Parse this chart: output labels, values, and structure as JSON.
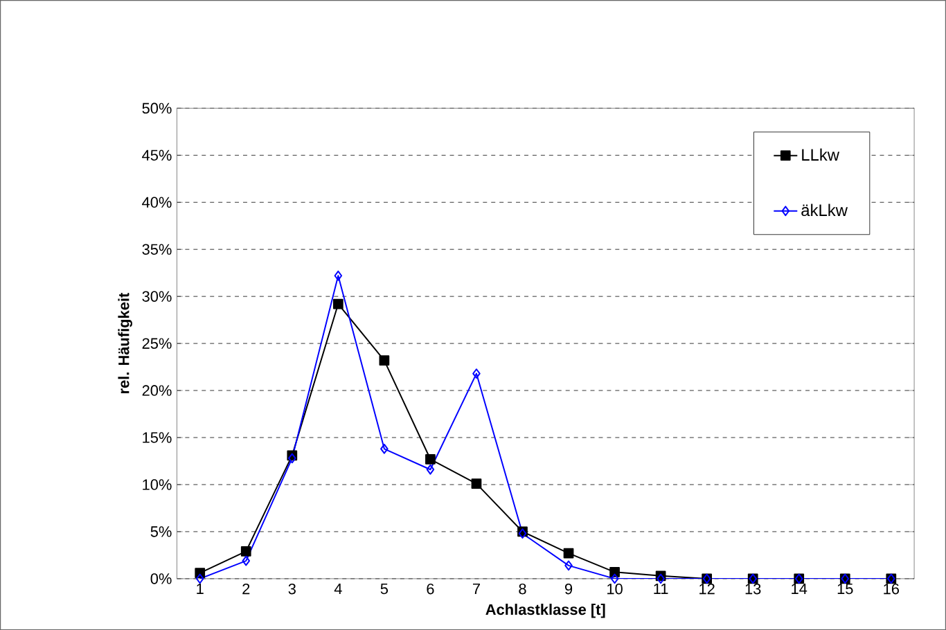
{
  "chart_data": {
    "type": "line",
    "xlabel": "Achlastklasse [t]",
    "ylabel": "rel. Häufigkeit",
    "categories": [
      "1",
      "2",
      "3",
      "4",
      "5",
      "6",
      "7",
      "8",
      "9",
      "10",
      "11",
      "12",
      "13",
      "14",
      "15",
      "16"
    ],
    "series": [
      {
        "name": "LLkw",
        "color": "#000000",
        "marker": "square",
        "values": [
          0.6,
          2.9,
          13.1,
          29.2,
          23.2,
          12.7,
          10.1,
          5.0,
          2.7,
          0.7,
          0.3,
          0,
          0,
          0,
          0,
          0
        ]
      },
      {
        "name": "äkLkw",
        "color": "#0000ff",
        "marker": "diamond",
        "values": [
          0,
          1.9,
          12.8,
          32.2,
          13.8,
          11.6,
          21.8,
          4.8,
          1.4,
          0,
          0,
          0,
          0,
          0,
          0,
          0
        ]
      }
    ],
    "ylim": [
      0,
      50
    ],
    "yticks": [
      {
        "value": 0,
        "label": "0%"
      },
      {
        "value": 5,
        "label": "5%"
      },
      {
        "value": 10,
        "label": "10%"
      },
      {
        "value": 15,
        "label": "15%"
      },
      {
        "value": 20,
        "label": "20%"
      },
      {
        "value": 25,
        "label": "25%"
      },
      {
        "value": 30,
        "label": "30%"
      },
      {
        "value": 35,
        "label": "35%"
      },
      {
        "value": 40,
        "label": "40%"
      },
      {
        "value": 45,
        "label": "45%"
      },
      {
        "value": 50,
        "label": "50%"
      }
    ],
    "grid": "y",
    "legend": "top right",
    "line_style": "solid"
  }
}
